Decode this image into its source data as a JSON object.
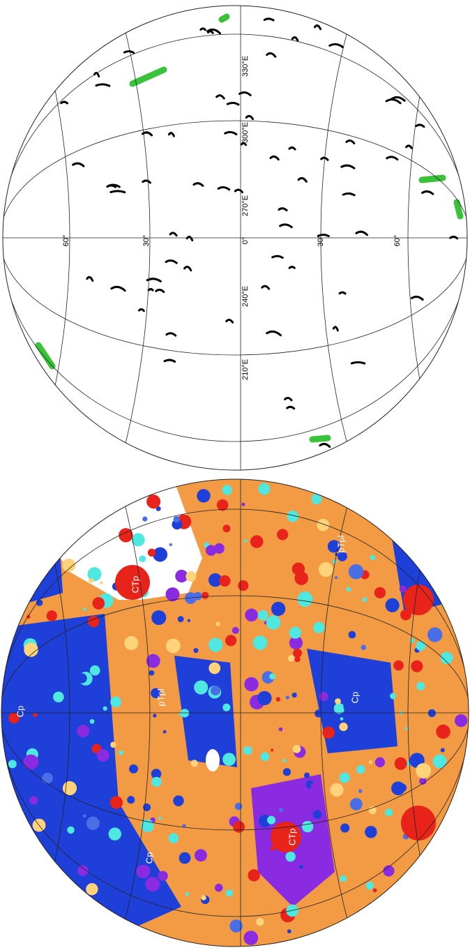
{
  "upper_map": {
    "longitude_labels": [
      "330°E",
      "300°E",
      "270°E",
      "240°E",
      "210°E"
    ],
    "latitude_labels": [
      "60°",
      "30°",
      "0°",
      "30°",
      "60°"
    ]
  },
  "lower_map": {
    "unit_labels": [
      "Cp",
      "CTp",
      "pTpl",
      "pTpl",
      "Cp",
      "CTp",
      "Cp"
    ]
  }
}
